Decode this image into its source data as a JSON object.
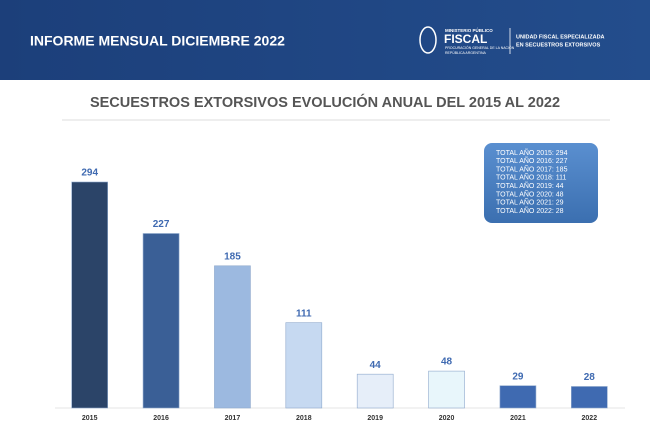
{
  "header": {
    "report": "INFORME MENSUAL DICIEMBRE 2022",
    "logo_top": "MINISTERIO PÚBLICO",
    "logo_main": "FISCAL",
    "logo_sub1": "PROCURACIÓN GENERAL DE LA NACIÓN",
    "logo_sub2": "REPÚBLICA ARGENTINA",
    "unit_line1": "UNIDAD FISCAL ESPECIALIZADA",
    "unit_line2": "EN SECUESTROS EXTORSIVOS"
  },
  "chart_data": {
    "type": "bar",
    "title": "SECUESTROS EXTORSIVOS EVOLUCIÓN ANUAL DEL 2015 AL 2022",
    "categories": [
      "2015",
      "2016",
      "2017",
      "2018",
      "2019",
      "2020",
      "2021",
      "2022"
    ],
    "values": [
      294,
      227,
      185,
      111,
      44,
      48,
      29,
      28
    ],
    "colors": [
      "#2b4468",
      "#3a5f96",
      "#9cb9e0",
      "#c6d9f1",
      "#e6eef9",
      "#e8f6fb",
      "#3f6ab1",
      "#3f6ab1"
    ],
    "annotations": [
      "TOTAL AÑO 2015: 294",
      "TOTAL AÑO 2016: 227",
      "TOTAL AÑO 2017: 185",
      "TOTAL AÑO 2018: 111",
      "TOTAL AÑO 2019: 44",
      "TOTAL AÑO 2020: 48",
      "TOTAL AÑO 2021: 29",
      "TOTAL AÑO 2022: 28"
    ]
  }
}
